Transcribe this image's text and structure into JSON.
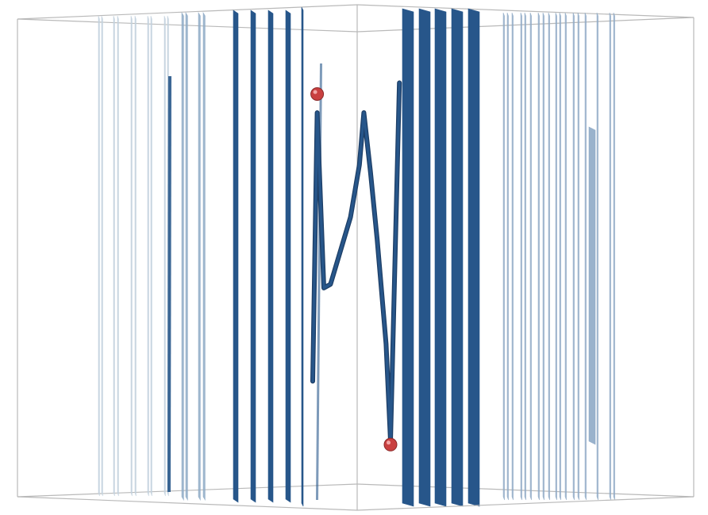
{
  "chart_data": {
    "type": "surface3d",
    "title": "",
    "axes_labels_visible": false,
    "box": true,
    "ribbon_color": "#27568a",
    "ribbon_color_light": "#8eaac6",
    "ribbon_color_faint": "#c3d1de",
    "extrema_color": "#c94040",
    "curve_trace": [
      {
        "depth": 0.95,
        "value": 0.18
      },
      {
        "depth": 0.97,
        "value": 0.9
      },
      {
        "depth": 1.0,
        "value": 0.43
      },
      {
        "depth": 1.03,
        "value": 0.44
      },
      {
        "depth": 1.06,
        "value": 0.5
      },
      {
        "depth": 1.12,
        "value": 0.62
      },
      {
        "depth": 1.16,
        "value": 0.76
      },
      {
        "depth": 1.18,
        "value": 0.9
      },
      {
        "depth": 1.21,
        "value": 0.74
      },
      {
        "depth": 1.24,
        "value": 0.56
      },
      {
        "depth": 1.28,
        "value": 0.28
      },
      {
        "depth": 1.3,
        "value": 0.02
      },
      {
        "depth": 1.34,
        "value": 0.98
      }
    ],
    "extrema": [
      {
        "label": "max",
        "depth": 0.97,
        "value": 0.95
      },
      {
        "label": "min",
        "depth": 1.3,
        "value": 0.01
      }
    ]
  }
}
